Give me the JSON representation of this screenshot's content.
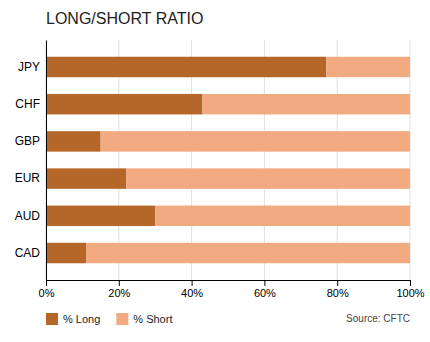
{
  "chart_data": {
    "type": "bar",
    "orientation": "horizontal",
    "stacked": true,
    "title": "LONG/SHORT RATIO",
    "categories": [
      "JPY",
      "CHF",
      "GBP",
      "EUR",
      "AUD",
      "CAD"
    ],
    "series": [
      {
        "name": "% Long",
        "color": "#B5672A",
        "values": [
          77,
          43,
          15,
          22,
          30,
          11
        ]
      },
      {
        "name": "% Short",
        "color": "#F2AA80",
        "values": [
          23,
          57,
          85,
          78,
          70,
          89
        ]
      }
    ],
    "xlim": [
      0,
      100
    ],
    "xticks": [
      {
        "value": 0,
        "label": "0%"
      },
      {
        "value": 20,
        "label": "20%"
      },
      {
        "value": 40,
        "label": "40%"
      },
      {
        "value": 60,
        "label": "60%"
      },
      {
        "value": 80,
        "label": "80%"
      },
      {
        "value": 100,
        "label": "100%"
      }
    ],
    "grid": true,
    "legend": "bottom",
    "annotations": [
      "Source: CFTC"
    ]
  }
}
